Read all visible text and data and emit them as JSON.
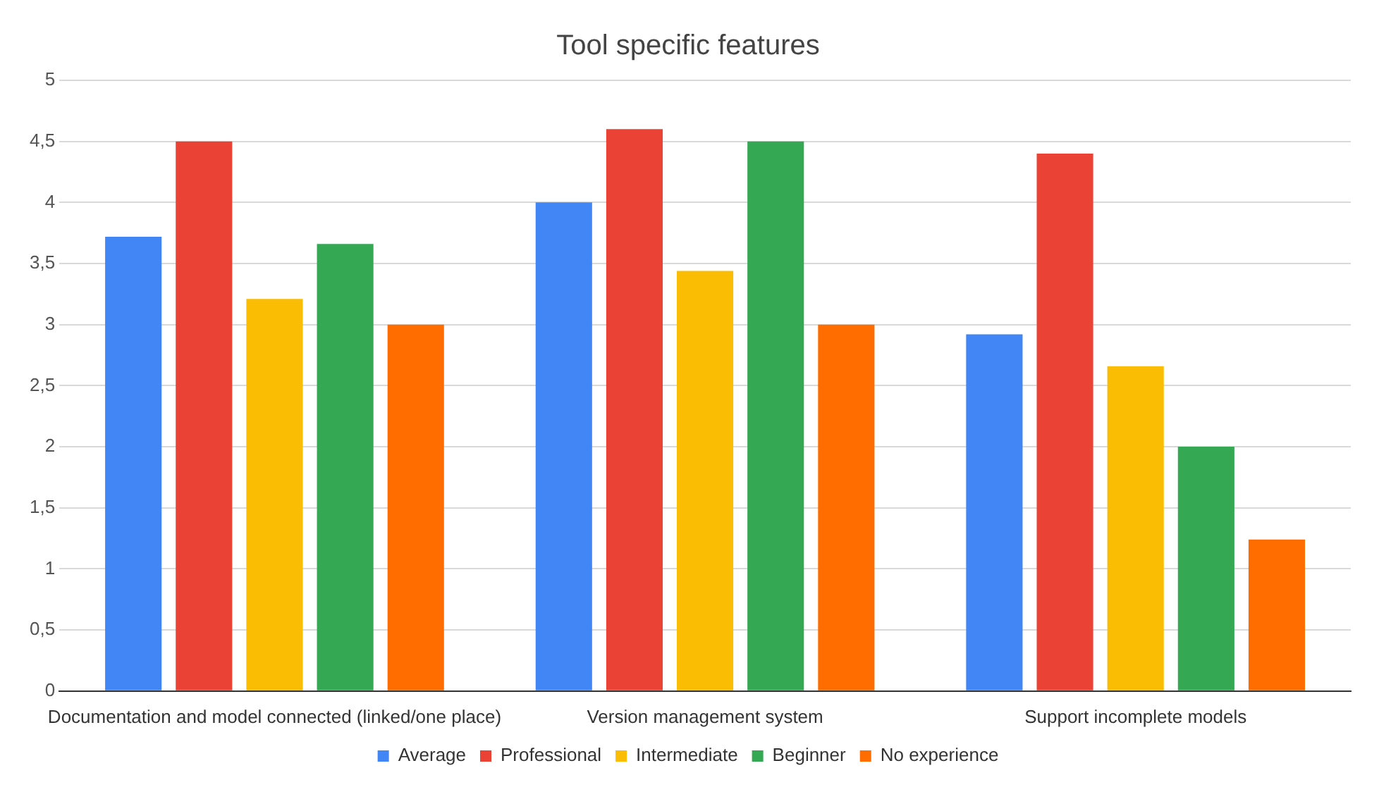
{
  "chart_data": {
    "type": "bar",
    "title": "Tool specific features",
    "categories": [
      "Documentation and model connected (linked/one place)",
      "Version management system",
      "Support incomplete models"
    ],
    "series": [
      {
        "name": "Average",
        "color": "#4285f4",
        "values": [
          3.72,
          4.0,
          2.92
        ]
      },
      {
        "name": "Professional",
        "color": "#ea4335",
        "values": [
          4.5,
          4.6,
          4.4
        ]
      },
      {
        "name": "Intermediate",
        "color": "#fbbc04",
        "values": [
          3.21,
          3.44,
          2.66
        ]
      },
      {
        "name": "Beginner",
        "color": "#34a853",
        "values": [
          3.66,
          4.5,
          2.0
        ]
      },
      {
        "name": "No experience",
        "color": "#ff6d01",
        "values": [
          3.0,
          3.0,
          1.24
        ]
      }
    ],
    "ylim": [
      0,
      5
    ],
    "yticks": [
      0,
      {
        "value": 0.5,
        "label": "0,5"
      },
      1,
      {
        "value": 1.5,
        "label": "1,5"
      },
      2,
      {
        "value": 2.5,
        "label": "2,5"
      },
      3,
      {
        "value": 3.5,
        "label": "3,5"
      },
      4,
      {
        "value": 4.5,
        "label": "4,5"
      },
      5
    ],
    "grid": "y",
    "legend": "bottom"
  }
}
